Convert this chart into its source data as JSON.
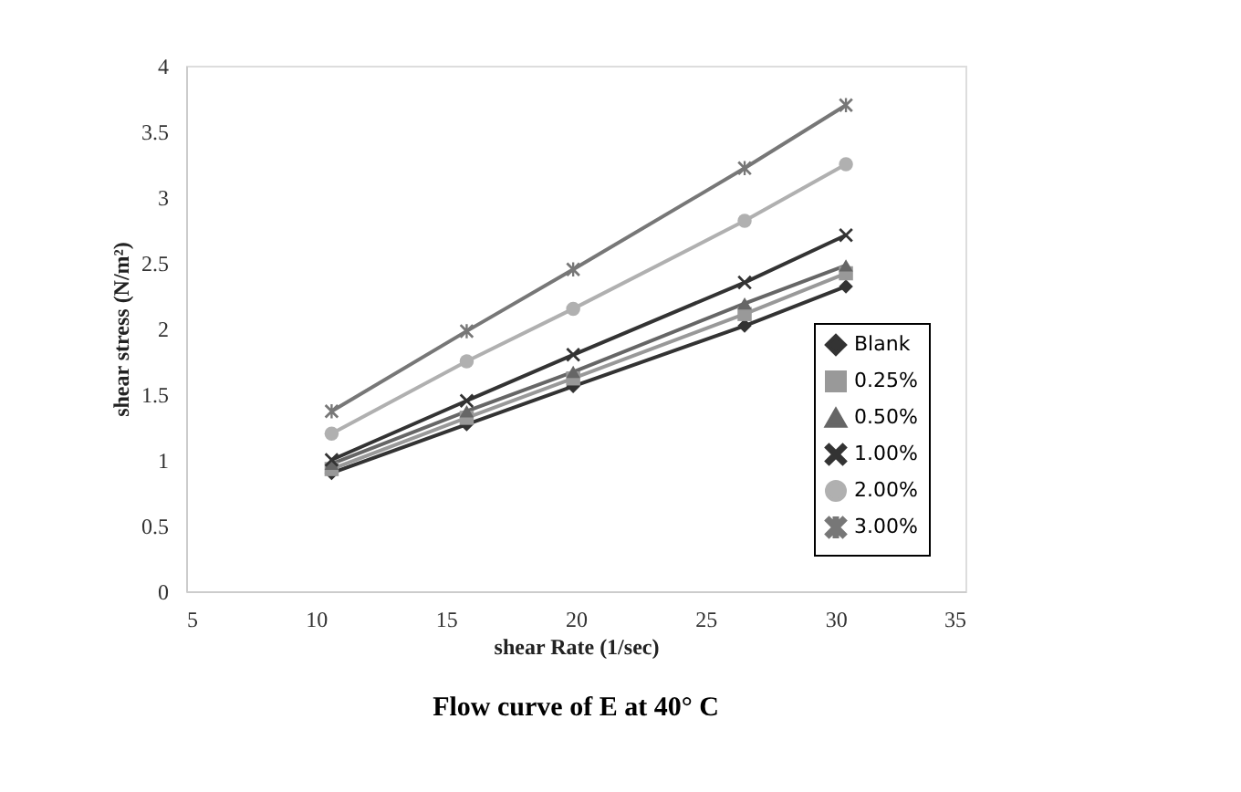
{
  "chart_data": {
    "type": "line",
    "title": "Flow curve of E at 40° C",
    "xlabel": "shear Rate (1/sec)",
    "ylabel": "shear stress (N/m²)",
    "x": [
      10.6,
      15.8,
      19.9,
      26.5,
      30.4
    ],
    "series": [
      {
        "name": "Blank",
        "color": "#333333",
        "marker": "diamond",
        "values": [
          0.9,
          1.27,
          1.56,
          2.02,
          2.32
        ]
      },
      {
        "name": "0.25%",
        "color": "#999999",
        "marker": "square",
        "values": [
          0.93,
          1.32,
          1.62,
          2.11,
          2.42
        ]
      },
      {
        "name": "0.50%",
        "color": "#666666",
        "marker": "triangle",
        "values": [
          0.97,
          1.37,
          1.67,
          2.19,
          2.48
        ]
      },
      {
        "name": "1.00%",
        "color": "#333333",
        "marker": "cross",
        "values": [
          1.0,
          1.45,
          1.8,
          2.35,
          2.71
        ]
      },
      {
        "name": "2.00%",
        "color": "#b0b0b0",
        "marker": "circle",
        "values": [
          1.2,
          1.75,
          2.15,
          2.82,
          3.25
        ]
      },
      {
        "name": "3.00%",
        "color": "#777777",
        "marker": "star",
        "values": [
          1.37,
          1.98,
          2.45,
          3.22,
          3.7
        ]
      }
    ],
    "xlim": [
      5,
      35
    ],
    "xticks": [
      5,
      10,
      15,
      20,
      25,
      30,
      35
    ],
    "ylim": [
      0,
      4
    ],
    "yticks": [
      0,
      0.5,
      1,
      1.5,
      2,
      2.5,
      3,
      3.5,
      4
    ],
    "grid": false,
    "legend": "bottom right",
    "line_style": "solid"
  }
}
